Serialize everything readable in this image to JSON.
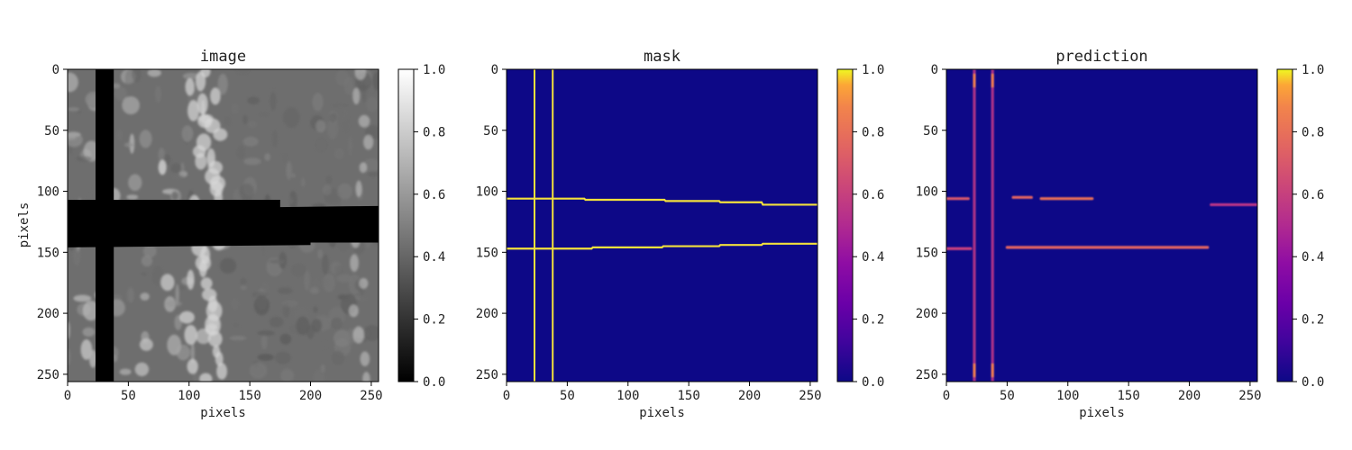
{
  "chart_data": [
    {
      "type": "heatmap",
      "title": "image",
      "xlabel": "pixels",
      "ylabel": "pixels",
      "xlim": [
        0,
        256
      ],
      "ylim": [
        256,
        0
      ],
      "xticks": [
        0,
        50,
        100,
        150,
        200,
        250
      ],
      "yticks": [
        0,
        50,
        100,
        150,
        200,
        250
      ],
      "colormap": "gray",
      "colorbar": {
        "min": 0.0,
        "max": 1.0,
        "ticks": [
          "0.0",
          "0.2",
          "0.4",
          "0.6",
          "0.8",
          "1.0"
        ]
      },
      "features": {
        "vertical_band_x": [
          23,
          38
        ],
        "horizontal_band_y_left": [
          107,
          146
        ],
        "horizontal_band_y_right": [
          112,
          142
        ]
      }
    },
    {
      "type": "heatmap",
      "title": "mask",
      "xlabel": "pixels",
      "ylabel": "",
      "xlim": [
        0,
        256
      ],
      "ylim": [
        256,
        0
      ],
      "xticks": [
        0,
        50,
        100,
        150,
        200,
        250
      ],
      "yticks": [
        0,
        50,
        100,
        150,
        200,
        250
      ],
      "colormap": "plasma",
      "colorbar": {
        "min": 0.0,
        "max": 1.0,
        "ticks": [
          "0.0",
          "0.2",
          "0.4",
          "0.6",
          "0.8",
          "1.0"
        ]
      },
      "features": {
        "vertical_lines_x": [
          23,
          38
        ],
        "top_edge": [
          [
            0,
            106
          ],
          [
            23,
            106
          ],
          [
            38,
            106
          ],
          [
            64,
            106
          ],
          [
            65,
            107
          ],
          [
            130,
            107
          ],
          [
            131,
            108
          ],
          [
            175,
            108
          ],
          [
            176,
            109
          ],
          [
            210,
            109
          ],
          [
            211,
            111
          ],
          [
            256,
            111
          ]
        ],
        "bottom_edge": [
          [
            0,
            147
          ],
          [
            23,
            147
          ],
          [
            38,
            147
          ],
          [
            70,
            147
          ],
          [
            71,
            146
          ],
          [
            128,
            146
          ],
          [
            129,
            145
          ],
          [
            175,
            145
          ],
          [
            176,
            144
          ],
          [
            210,
            144
          ],
          [
            211,
            143
          ],
          [
            256,
            143
          ]
        ]
      }
    },
    {
      "type": "heatmap",
      "title": "prediction",
      "xlabel": "pixels",
      "ylabel": "",
      "xlim": [
        0,
        256
      ],
      "ylim": [
        256,
        0
      ],
      "xticks": [
        0,
        50,
        100,
        150,
        200,
        250
      ],
      "yticks": [
        0,
        50,
        100,
        150,
        200,
        250
      ],
      "colormap": "plasma",
      "colorbar": {
        "min": 0.0,
        "max": 1.0,
        "ticks": [
          "0.0",
          "0.2",
          "0.4",
          "0.6",
          "0.8",
          "1.0"
        ]
      },
      "features": {
        "vertical_lines_x": [
          23,
          38
        ],
        "top_segments": [
          [
            0,
            18,
            106,
            0.7
          ],
          [
            55,
            70,
            105,
            0.75
          ],
          [
            78,
            120,
            106,
            0.8
          ],
          [
            218,
            256,
            111,
            0.55
          ]
        ],
        "bottom_segments": [
          [
            0,
            20,
            147,
            0.6
          ],
          [
            50,
            215,
            146,
            0.75
          ]
        ]
      }
    }
  ]
}
